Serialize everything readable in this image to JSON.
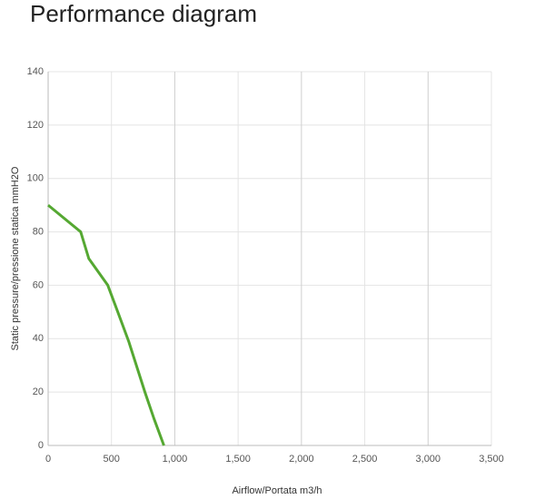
{
  "chart_data": {
    "type": "line",
    "title": "Performance diagram",
    "x_label": "Airflow/Portata m3/h",
    "y_label": "Static pressure/pressione statica mmH2O",
    "series": [
      {
        "color": "#55a832",
        "x": [
          0,
          257,
          321,
          471,
          550,
          636,
          764,
          836,
          914
        ],
        "values": [
          90,
          80,
          70,
          60,
          50,
          39,
          20,
          10,
          0
        ]
      }
    ],
    "xlim": [
      0,
      3500
    ],
    "xticks": [
      0,
      500,
      {
        "value": 1000,
        "label": "1,000"
      },
      {
        "value": 1500,
        "label": "1,500"
      },
      {
        "value": 2000,
        "label": "2,000"
      },
      {
        "value": 2500,
        "label": "2,500"
      },
      {
        "value": 3000,
        "label": "3,000"
      },
      {
        "value": 3500,
        "label": "3,500"
      }
    ],
    "ylim": [
      0,
      140
    ],
    "yticks": [
      0,
      20,
      40,
      60,
      80,
      100,
      120,
      140
    ],
    "grid": true
  }
}
